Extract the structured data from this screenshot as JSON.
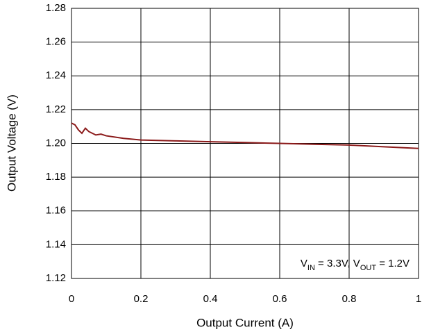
{
  "chart_data": {
    "type": "line",
    "x_label": "Output Current (A)",
    "y_label": "Output Voltage (V)",
    "annotation": [
      {
        "text": "V"
      },
      {
        "text": "IN",
        "sub": true
      },
      {
        "text": " = 3.3V, V"
      },
      {
        "text": "OUT",
        "sub": true
      },
      {
        "text": " = 1.2V"
      }
    ],
    "x": [
      0,
      0.01,
      0.02,
      0.03,
      0.04,
      0.05,
      0.07,
      0.085,
      0.1,
      0.15,
      0.2,
      0.3,
      0.4,
      0.5,
      0.6,
      0.7,
      0.8,
      0.9,
      1.0
    ],
    "series": [
      {
        "color": "#8b1a1a",
        "values": [
          1.212,
          1.211,
          1.208,
          1.206,
          1.209,
          1.207,
          1.205,
          1.2055,
          1.2045,
          1.203,
          1.202,
          1.2015,
          1.201,
          1.2005,
          1.2,
          1.1995,
          1.199,
          1.198,
          1.197
        ]
      }
    ],
    "xlim": [
      0,
      1
    ],
    "xticks": [
      0,
      0.2,
      0.4,
      0.6,
      0.8,
      1
    ],
    "ylim": [
      1.12,
      1.28
    ],
    "yticks": [
      1.12,
      1.14,
      1.16,
      1.18,
      {
        "value": 1.2,
        "label": "1.20"
      },
      1.22,
      1.24,
      1.26,
      1.28
    ],
    "grid": true
  }
}
